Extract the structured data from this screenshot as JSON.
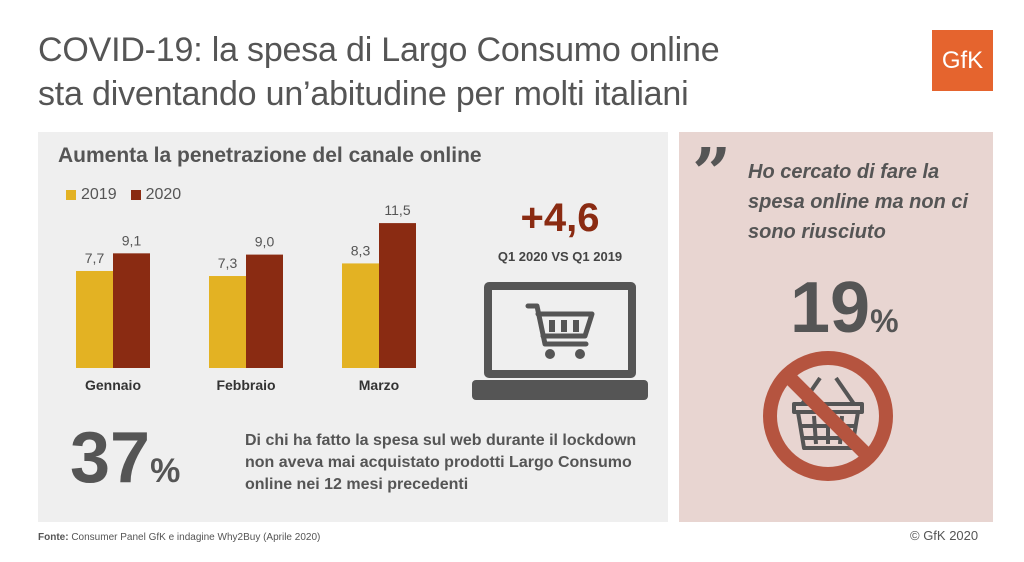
{
  "header": {
    "title_line1": "COVID-19: la spesa di Largo Consumo online",
    "title_line2": "sta diventando un’abitudine per molti italiani",
    "logo": "GfK",
    "brand_color": "#e5642e"
  },
  "chart_data": {
    "type": "bar",
    "title": "Aumenta la penetrazione del canale online",
    "categories": [
      "Gennaio",
      "Febbraio",
      "Marzo"
    ],
    "series": [
      {
        "name": "2019",
        "values": [
          7.7,
          7.3,
          8.3
        ],
        "labels": [
          "7,7",
          "7,3",
          "8,3"
        ],
        "color": "#e3b223"
      },
      {
        "name": "2020",
        "values": [
          9.1,
          9.0,
          11.5
        ],
        "labels": [
          "9,1",
          "9,0",
          "11,5"
        ],
        "color": "#8a2b12"
      }
    ],
    "legend": "top-left",
    "grid": false
  },
  "comparison": {
    "value": "+4,6",
    "label": "Q1 2020 VS Q1 2019",
    "icon": "laptop-cart-icon"
  },
  "stat37": {
    "number": "37",
    "unit": "%",
    "text": "Di chi ha fatto la spesa sul web durante il lockdown non aveva mai acquistato prodotti Largo Consumo online nei 12 mesi precedenti"
  },
  "quote_panel": {
    "quote": "Ho cercato di fare la spesa online ma non ci sono riusciuto",
    "number": "19",
    "unit": "%",
    "icon": "no-basket-icon",
    "prohibit_color": "#b5543f"
  },
  "footer": {
    "source_label": "Fonte:",
    "source_text": "Consumer Panel GfK e indagine Why2Buy (Aprile 2020)",
    "copyright": "© GfK 2020"
  }
}
